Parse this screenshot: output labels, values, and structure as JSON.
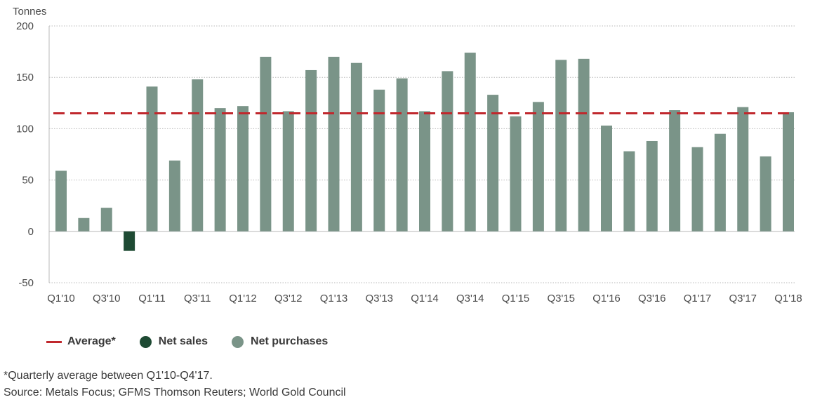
{
  "chart_data": {
    "type": "bar",
    "ylabel": "Tonnes",
    "ylim": [
      -50,
      200
    ],
    "yticks": [
      200,
      150,
      100,
      50,
      0,
      -50
    ],
    "grid": true,
    "categories": [
      "Q1'10",
      "Q2'10",
      "Q3'10",
      "Q4'10",
      "Q1'11",
      "Q2'11",
      "Q3'11",
      "Q4'11",
      "Q1'12",
      "Q2'12",
      "Q3'12",
      "Q4'12",
      "Q1'13",
      "Q2'13",
      "Q3'13",
      "Q4'13",
      "Q1'14",
      "Q2'14",
      "Q3'14",
      "Q4'14",
      "Q1'15",
      "Q2'15",
      "Q3'15",
      "Q4'15",
      "Q1'16",
      "Q2'16",
      "Q3'16",
      "Q4'16",
      "Q1'17",
      "Q2'17",
      "Q3'17",
      "Q4'17",
      "Q1'18"
    ],
    "values": [
      59,
      13,
      23,
      -19,
      141,
      69,
      148,
      120,
      122,
      170,
      117,
      157,
      170,
      164,
      138,
      149,
      117,
      156,
      174,
      133,
      112,
      126,
      167,
      168,
      103,
      78,
      88,
      118,
      82,
      95,
      121,
      73,
      116
    ],
    "xtick_labels": [
      "Q1'10",
      "Q3'10",
      "Q1'11",
      "Q3'11",
      "Q1'12",
      "Q3'12",
      "Q1'13",
      "Q3'13",
      "Q1'14",
      "Q3'14",
      "Q1'15",
      "Q3'15",
      "Q1'16",
      "Q3'16",
      "Q1'17",
      "Q3'17",
      "Q1'18"
    ],
    "average": 115,
    "series": [
      {
        "name": "Net sales",
        "color": "#1e4a33"
      },
      {
        "name": "Net purchases",
        "color": "#7a9488"
      }
    ],
    "average_color": "#c0282d",
    "legend_position": "bottom-left"
  },
  "legend": {
    "average_label": "Average*",
    "net_sales_label": "Net sales",
    "net_purchases_label": "Net purchases"
  },
  "footnote": "*Quarterly average between Q1'10-Q4'17.",
  "source": "Source: Metals Focus; GFMS Thomson Reuters; World Gold Council"
}
